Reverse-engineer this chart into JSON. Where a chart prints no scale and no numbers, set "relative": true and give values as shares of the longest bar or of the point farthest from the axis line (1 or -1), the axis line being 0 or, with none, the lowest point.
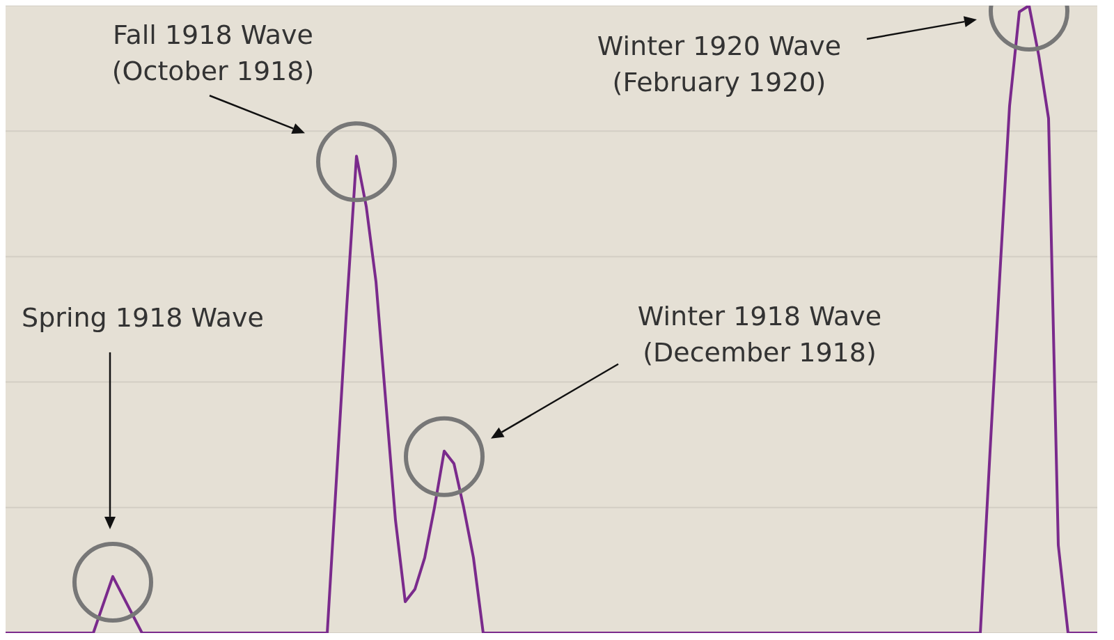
{
  "chart_data": {
    "type": "line",
    "relative": true,
    "grid": "y",
    "categories": [
      null,
      null,
      null,
      null,
      null,
      null,
      null,
      null,
      null,
      null,
      null,
      null,
      null,
      null,
      null,
      null,
      null,
      null,
      null,
      null,
      null,
      null,
      null,
      null,
      null,
      null,
      null,
      null,
      null,
      null,
      null,
      null,
      null,
      null,
      null,
      null,
      null,
      null,
      null,
      null,
      null,
      null,
      null,
      null,
      null,
      null,
      null,
      null,
      null,
      null,
      null,
      null,
      null,
      null,
      null,
      null,
      null,
      null,
      null,
      null,
      null,
      null,
      null,
      null,
      null,
      null,
      null,
      null,
      null,
      null,
      null,
      null,
      null,
      null,
      null,
      null,
      null,
      null,
      null,
      null,
      null,
      null,
      null,
      null,
      null,
      null,
      null,
      null,
      null,
      null,
      null,
      null,
      null,
      null,
      null,
      null,
      null,
      null,
      null,
      null,
      null,
      null,
      null,
      null,
      null,
      null,
      null,
      null,
      null,
      null,
      null,
      null,
      null
    ],
    "series": [
      {
        "color": "#7a2a8c",
        "values": [
          0,
          0,
          0,
          0,
          0,
          0,
          0,
          0,
          0,
          0,
          0.045,
          0.09,
          0.06,
          0.03,
          0,
          0,
          0,
          0,
          0,
          0,
          0,
          0,
          0,
          0,
          0,
          0,
          0,
          0,
          0,
          0,
          0,
          0,
          0,
          0,
          0.26,
          0.52,
          0.76,
          0.68,
          0.56,
          0.37,
          0.18,
          0.05,
          0.07,
          0.12,
          0.2,
          0.29,
          0.27,
          0.2,
          0.12,
          0,
          0,
          0,
          0,
          0,
          0,
          0,
          0,
          0,
          0,
          0,
          0,
          0,
          0,
          0,
          0,
          0,
          0,
          0,
          0,
          0,
          0,
          0,
          0,
          0,
          0,
          0,
          0,
          0,
          0,
          0,
          0,
          0,
          0,
          0,
          0,
          0,
          0,
          0,
          0,
          0,
          0,
          0,
          0,
          0,
          0,
          0,
          0,
          0,
          0,
          0,
          0,
          0.29,
          0.57,
          0.84,
          0.99,
          1,
          0.92,
          0.82,
          0.14,
          0,
          0,
          0,
          0
        ]
      }
    ],
    "annotations": [
      "Spring 1918 Wave",
      "Fall 1918 Wave\n(October 1918)",
      "Winter 1918 Wave\n(December 1918)",
      "Winter 1920 Wave\n(February 1920)"
    ]
  }
}
